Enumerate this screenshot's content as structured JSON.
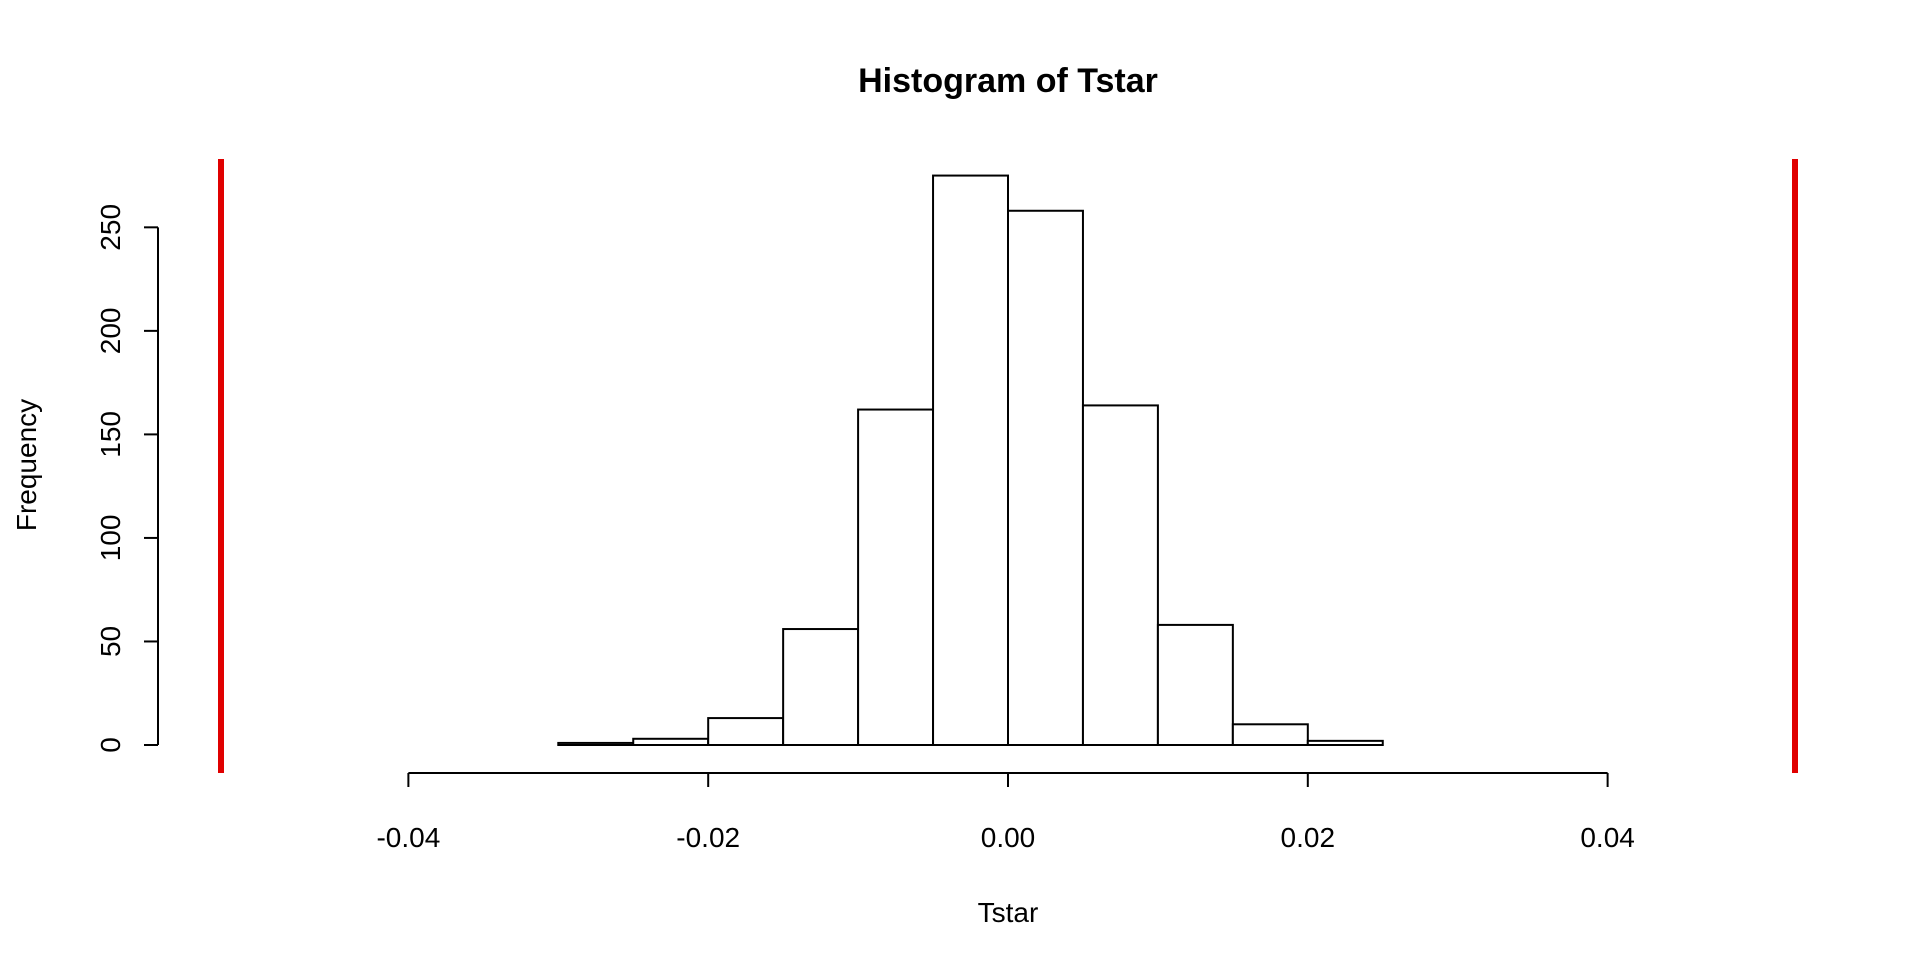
{
  "chart_data": {
    "type": "bar",
    "title": "Histogram of Tstar",
    "xlabel": "Tstar",
    "ylabel": "Frequency",
    "xlim": [
      -0.0525,
      0.0525
    ],
    "ylim": [
      0,
      283
    ],
    "x_ticks": [
      -0.04,
      -0.02,
      0.0,
      0.02,
      0.04
    ],
    "x_tick_labels": [
      "-0.04",
      "-0.02",
      "0.00",
      "0.02",
      "0.04"
    ],
    "y_ticks": [
      0,
      50,
      100,
      150,
      200,
      250
    ],
    "y_tick_labels": [
      "0",
      "50",
      "100",
      "150",
      "200",
      "250"
    ],
    "bins": [
      {
        "x0": -0.03,
        "x1": -0.025,
        "count": 1
      },
      {
        "x0": -0.025,
        "x1": -0.02,
        "count": 3
      },
      {
        "x0": -0.02,
        "x1": -0.015,
        "count": 13
      },
      {
        "x0": -0.015,
        "x1": -0.01,
        "count": 56
      },
      {
        "x0": -0.01,
        "x1": -0.005,
        "count": 162
      },
      {
        "x0": -0.005,
        "x1": 0.0,
        "count": 275
      },
      {
        "x0": 0.0,
        "x1": 0.005,
        "count": 258
      },
      {
        "x0": 0.005,
        "x1": 0.01,
        "count": 164
      },
      {
        "x0": 0.01,
        "x1": 0.015,
        "count": 58
      },
      {
        "x0": 0.015,
        "x1": 0.02,
        "count": 10
      },
      {
        "x0": 0.02,
        "x1": 0.025,
        "count": 2
      }
    ],
    "reference_lines": [
      {
        "x": -0.0525,
        "color": "#e00000"
      },
      {
        "x": 0.0525,
        "color": "#e00000"
      }
    ],
    "grid": false,
    "legend": "none"
  }
}
